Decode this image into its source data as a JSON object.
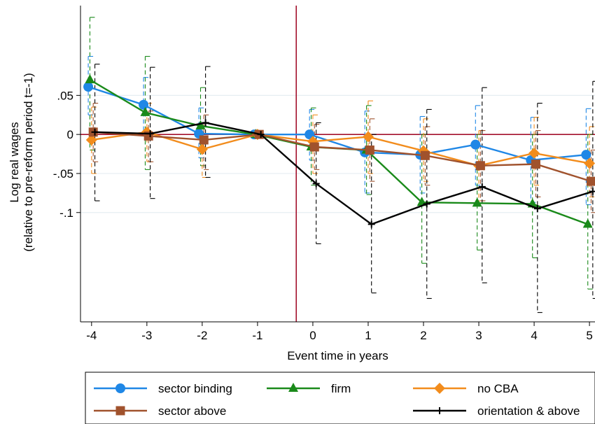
{
  "chart_data": {
    "type": "line",
    "title": "",
    "xlabel": "Event time in years",
    "ylabel": [
      "Log real wages",
      "(relative to pre-reform period t=-1)"
    ],
    "x": [
      -4,
      -3,
      -2,
      -1,
      0,
      1,
      2,
      3,
      4,
      5
    ],
    "xticks": [
      -4,
      -3,
      -2,
      -1,
      0,
      1,
      2,
      3,
      4,
      5
    ],
    "yticks": [
      0.05,
      0,
      -0.05,
      -0.1
    ],
    "ytick_labels": [
      ".05",
      "0",
      "-.05",
      "-.1"
    ],
    "xlim": [
      -4.2,
      5.1
    ],
    "ylim": [
      -0.24,
      0.165
    ],
    "grid": true,
    "reform_line_x": -0.3,
    "zero_line": true,
    "error_bars": "95% confidence intervals (dashed caps)",
    "series": [
      {
        "name": "sector binding",
        "color": "#1f87e6",
        "marker": "circle",
        "offset": -0.06,
        "values": [
          0.061,
          0.038,
          0.001,
          0.0,
          0.0,
          -0.023,
          -0.026,
          -0.013,
          -0.033,
          -0.026
        ],
        "ci_low": [
          0.025,
          0.0,
          -0.03,
          0.0,
          -0.033,
          -0.075,
          -0.075,
          -0.065,
          -0.087,
          -0.09
        ],
        "ci_high": [
          0.1,
          0.073,
          0.034,
          0.0,
          0.032,
          0.03,
          0.023,
          0.037,
          0.022,
          0.033
        ]
      },
      {
        "name": "firm",
        "color": "#1a8a1a",
        "marker": "triangle",
        "offset": -0.03,
        "values": [
          0.07,
          0.028,
          0.011,
          0.0,
          -0.016,
          -0.02,
          -0.087,
          -0.088,
          -0.089,
          -0.115
        ],
        "ci_low": [
          -0.02,
          -0.045,
          -0.04,
          0.0,
          -0.065,
          -0.077,
          -0.165,
          -0.148,
          -0.158,
          -0.198
        ],
        "ci_high": [
          0.15,
          0.1,
          0.06,
          0.0,
          0.034,
          0.037,
          0.0,
          0.0,
          0.0,
          0.0
        ]
      },
      {
        "name": "no CBA",
        "color": "#f28c1c",
        "marker": "diamond",
        "offset": 0.0,
        "values": [
          -0.007,
          0.003,
          -0.019,
          0.0,
          -0.009,
          -0.003,
          -0.021,
          -0.04,
          -0.024,
          -0.037
        ],
        "ci_low": [
          -0.05,
          -0.035,
          -0.055,
          0.0,
          -0.05,
          -0.05,
          -0.06,
          -0.085,
          -0.065,
          -0.08
        ],
        "ci_high": [
          0.035,
          0.04,
          0.015,
          0.0,
          0.025,
          0.043,
          0.02,
          0.005,
          0.022,
          0.01
        ]
      },
      {
        "name": "sector above",
        "color": "#a0522d",
        "marker": "square",
        "offset": 0.03,
        "values": [
          0.003,
          -0.002,
          -0.007,
          0.0,
          -0.016,
          -0.02,
          -0.027,
          -0.04,
          -0.038,
          -0.06
        ],
        "ci_low": [
          -0.035,
          -0.035,
          -0.045,
          0.0,
          -0.045,
          -0.06,
          -0.065,
          -0.085,
          -0.08,
          -0.1
        ],
        "ci_high": [
          0.04,
          0.03,
          0.025,
          0.0,
          0.013,
          0.02,
          0.01,
          0.005,
          0.005,
          -0.02
        ]
      },
      {
        "name": "orientation & above",
        "color": "#000000",
        "marker": "plus",
        "offset": 0.06,
        "values": [
          0.003,
          0.001,
          0.015,
          0.0,
          -0.063,
          -0.115,
          -0.089,
          -0.067,
          -0.095,
          -0.073
        ],
        "ci_low": [
          -0.085,
          -0.082,
          -0.055,
          0.0,
          -0.14,
          -0.203,
          -0.21,
          -0.19,
          -0.228,
          -0.21
        ],
        "ci_high": [
          0.09,
          0.086,
          0.087,
          0.0,
          0.015,
          0.0,
          0.032,
          0.06,
          0.04,
          0.068
        ]
      }
    ],
    "legend": {
      "placement": "bottom",
      "columns": 3
    }
  }
}
